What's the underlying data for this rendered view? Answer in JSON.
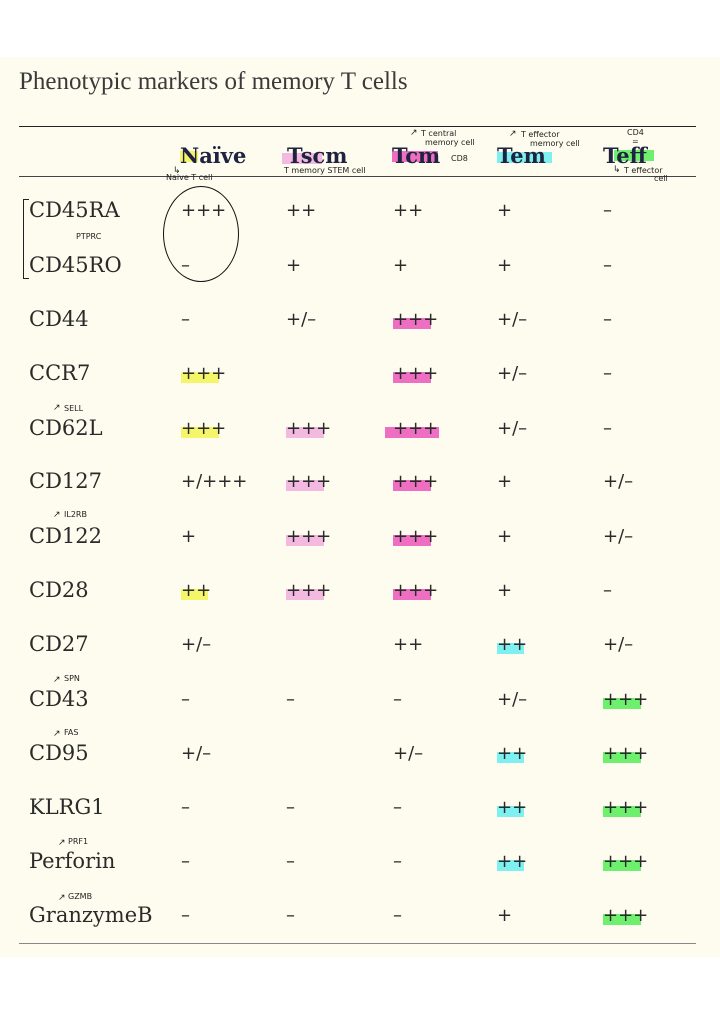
{
  "title": "Phenotypic markers of memory T cells",
  "colors": {
    "yellow": "#f5f56a",
    "pink_light": "#f3b9e1",
    "pink": "#ee6fc2",
    "cyan": "#7ff0f0",
    "green": "#6ef06e"
  },
  "headers": [
    "Naïve",
    "Tscm",
    "Tcm",
    "Tem",
    "Teff"
  ],
  "header_notes": {
    "naive": "Naive T cell",
    "tscm": "T memory STEM cell",
    "tcm_top": "T central",
    "tcm_mid": "memory cell",
    "tcm_right": "CD8",
    "tem_top": "T effector",
    "tem_mid": "memory cell",
    "teff_top": "CD4",
    "teff_mid": "=",
    "teff_bottom1": "T effector",
    "teff_bottom2": "cell"
  },
  "annotations": {
    "ptprc": "PTPRC",
    "sell": "SELL",
    "il2rb": "IL2RB",
    "spn": "SPN",
    "fas": "FAS",
    "prf1": "PRF1",
    "gzmb": "GZMB"
  },
  "rows": [
    {
      "marker": "CD45RA",
      "values": [
        "+++",
        "++",
        "++",
        "+",
        "–"
      ]
    },
    {
      "marker": "CD45RO",
      "values": [
        "–",
        "+",
        "+",
        "+",
        "–"
      ]
    },
    {
      "marker": "CD44",
      "values": [
        "–",
        "+/–",
        "+++",
        "+/–",
        "–"
      ]
    },
    {
      "marker": "CCR7",
      "values": [
        "+++",
        "",
        "+++",
        "+/–",
        "–"
      ]
    },
    {
      "marker": "CD62L",
      "values": [
        "+++",
        "+++",
        "+++",
        "+/–",
        "–"
      ]
    },
    {
      "marker": "CD127",
      "values": [
        "+/+++",
        "+++",
        "+++",
        "+",
        "+/–"
      ]
    },
    {
      "marker": "CD122",
      "values": [
        "+",
        "+++",
        "+++",
        "+",
        "+/–"
      ]
    },
    {
      "marker": "CD28",
      "values": [
        "++",
        "+++",
        "+++",
        "+",
        "–"
      ]
    },
    {
      "marker": "CD27",
      "values": [
        "+/–",
        "",
        "++",
        "++",
        "+/–"
      ]
    },
    {
      "marker": "CD43",
      "values": [
        "–",
        "–",
        "–",
        "+/–",
        "+++"
      ]
    },
    {
      "marker": "CD95",
      "values": [
        "+/–",
        "",
        "+/–",
        "++",
        "+++"
      ]
    },
    {
      "marker": "KLRG1",
      "values": [
        "–",
        "–",
        "–",
        "++",
        "+++"
      ]
    },
    {
      "marker": "Perforin",
      "values": [
        "–",
        "–",
        "–",
        "++",
        "+++"
      ]
    },
    {
      "marker": "GranzymeB",
      "values": [
        "–",
        "–",
        "–",
        "+",
        "+++"
      ]
    }
  ]
}
